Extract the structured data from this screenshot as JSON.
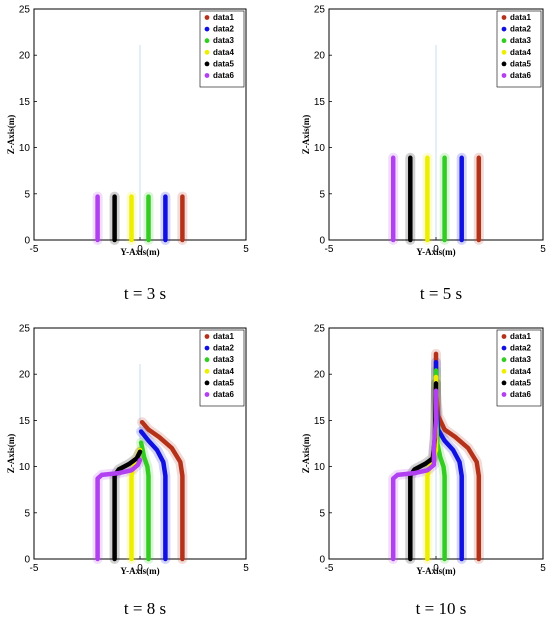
{
  "chart_data": [
    {
      "type": "line",
      "caption": "t = 3 s",
      "xlabel": "Y-Axis(m)",
      "ylabel": "Z-Axis(m)",
      "xlim": [
        -5,
        5
      ],
      "ylim": [
        0,
        25
      ],
      "xticks": [
        "-5",
        "0",
        "5"
      ],
      "yticks": [
        "0",
        "5",
        "10",
        "15",
        "20",
        "25"
      ],
      "legend_position": "top-right",
      "series": [
        {
          "name": "data1",
          "color": "#b5321a",
          "points": [
            [
              2,
              0
            ],
            [
              2,
              4.7
            ]
          ]
        },
        {
          "name": "data2",
          "color": "#1010e0",
          "points": [
            [
              1.2,
              0
            ],
            [
              1.2,
              4.7
            ]
          ]
        },
        {
          "name": "data3",
          "color": "#33cc22",
          "points": [
            [
              0.4,
              0
            ],
            [
              0.4,
              4.7
            ]
          ]
        },
        {
          "name": "data4",
          "color": "#eeee00",
          "points": [
            [
              -0.4,
              0
            ],
            [
              -0.4,
              4.7
            ]
          ]
        },
        {
          "name": "data5",
          "color": "#000000",
          "points": [
            [
              -1.2,
              0
            ],
            [
              -1.2,
              4.7
            ]
          ]
        },
        {
          "name": "data6",
          "color": "#b040f0",
          "points": [
            [
              -2,
              0
            ],
            [
              -2,
              4.7
            ]
          ]
        }
      ]
    },
    {
      "type": "line",
      "caption": "t = 5 s",
      "xlabel": "Y-Axis(m)",
      "ylabel": "Z-Axis(m)",
      "xlim": [
        -5,
        5
      ],
      "ylim": [
        0,
        25
      ],
      "xticks": [
        "-5",
        "0",
        "5"
      ],
      "yticks": [
        "0",
        "5",
        "10",
        "15",
        "20",
        "25"
      ],
      "legend_position": "top-right",
      "series": [
        {
          "name": "data1",
          "color": "#b5321a",
          "points": [
            [
              2,
              0
            ],
            [
              2,
              8.9
            ]
          ]
        },
        {
          "name": "data2",
          "color": "#1010e0",
          "points": [
            [
              1.2,
              0
            ],
            [
              1.2,
              8.9
            ]
          ]
        },
        {
          "name": "data3",
          "color": "#33cc22",
          "points": [
            [
              0.4,
              0
            ],
            [
              0.4,
              8.9
            ]
          ]
        },
        {
          "name": "data4",
          "color": "#eeee00",
          "points": [
            [
              -0.4,
              0
            ],
            [
              -0.4,
              8.9
            ]
          ]
        },
        {
          "name": "data5",
          "color": "#000000",
          "points": [
            [
              -1.2,
              0
            ],
            [
              -1.2,
              8.9
            ]
          ]
        },
        {
          "name": "data6",
          "color": "#b040f0",
          "points": [
            [
              -2,
              0
            ],
            [
              -2,
              8.9
            ]
          ]
        }
      ]
    },
    {
      "type": "line",
      "caption": "t = 8 s",
      "xlabel": "Y-Axis(m)",
      "ylabel": "Z-Axis(m)",
      "xlim": [
        -5,
        5
      ],
      "ylim": [
        0,
        25
      ],
      "xticks": [
        "-5",
        "0",
        "5"
      ],
      "yticks": [
        "0",
        "5",
        "10",
        "15",
        "20",
        "25"
      ],
      "legend_position": "top-right",
      "series": [
        {
          "name": "data1",
          "color": "#b5321a",
          "points": [
            [
              2,
              0
            ],
            [
              2,
              9
            ],
            [
              1.9,
              10.5
            ],
            [
              1.5,
              12
            ],
            [
              0.9,
              13.2
            ],
            [
              0.4,
              14
            ],
            [
              0.1,
              14.8
            ]
          ]
        },
        {
          "name": "data2",
          "color": "#1010e0",
          "points": [
            [
              1.2,
              0
            ],
            [
              1.2,
              9
            ],
            [
              1.1,
              10.5
            ],
            [
              0.8,
              11.8
            ],
            [
              0.4,
              12.8
            ],
            [
              0.05,
              13.8
            ]
          ]
        },
        {
          "name": "data3",
          "color": "#33cc22",
          "points": [
            [
              0.4,
              0
            ],
            [
              0.4,
              9
            ],
            [
              0.35,
              10
            ],
            [
              0.2,
              11
            ],
            [
              0.05,
              12.6
            ]
          ]
        },
        {
          "name": "data4",
          "color": "#eeee00",
          "points": [
            [
              -0.4,
              0
            ],
            [
              -0.4,
              9
            ],
            [
              -0.3,
              10
            ],
            [
              -0.15,
              10.8
            ],
            [
              0,
              11.8
            ]
          ]
        },
        {
          "name": "data5",
          "color": "#000000",
          "points": [
            [
              -1.2,
              0
            ],
            [
              -1.2,
              9
            ],
            [
              -1.0,
              9.7
            ],
            [
              -0.5,
              10.3
            ],
            [
              -0.15,
              10.9
            ],
            [
              0,
              11.6
            ]
          ]
        },
        {
          "name": "data6",
          "color": "#b040f0",
          "points": [
            [
              -2,
              0
            ],
            [
              -2,
              8.7
            ],
            [
              -1.8,
              9.1
            ],
            [
              -1.0,
              9.3
            ],
            [
              -0.4,
              9.6
            ],
            [
              -0.1,
              10.2
            ],
            [
              0,
              10.7
            ]
          ]
        }
      ]
    },
    {
      "type": "line",
      "caption": "t = 10 s",
      "xlabel": "Y-Axis(m)",
      "ylabel": "Z-Axis(m)",
      "xlim": [
        -5,
        5
      ],
      "ylim": [
        0,
        25
      ],
      "xticks": [
        "-5",
        "0",
        "5"
      ],
      "yticks": [
        "0",
        "5",
        "10",
        "15",
        "20",
        "25"
      ],
      "legend_position": "top-right",
      "series": [
        {
          "name": "data1",
          "color": "#b5321a",
          "points": [
            [
              2,
              0
            ],
            [
              2,
              9
            ],
            [
              1.9,
              10.5
            ],
            [
              1.5,
              12
            ],
            [
              0.9,
              13.2
            ],
            [
              0.4,
              14
            ],
            [
              0.1,
              15.5
            ],
            [
              0,
              18
            ],
            [
              0,
              22.2
            ]
          ]
        },
        {
          "name": "data2",
          "color": "#1010e0",
          "points": [
            [
              1.2,
              0
            ],
            [
              1.2,
              9
            ],
            [
              1.1,
              10.5
            ],
            [
              0.8,
              11.8
            ],
            [
              0.4,
              12.8
            ],
            [
              0.1,
              14
            ],
            [
              0,
              17
            ],
            [
              0,
              21.3
            ]
          ]
        },
        {
          "name": "data3",
          "color": "#33cc22",
          "points": [
            [
              0.4,
              0
            ],
            [
              0.4,
              9
            ],
            [
              0.35,
              10
            ],
            [
              0.2,
              11
            ],
            [
              0.05,
              12.6
            ],
            [
              0,
              16
            ],
            [
              0,
              20.4
            ]
          ]
        },
        {
          "name": "data4",
          "color": "#eeee00",
          "points": [
            [
              -0.4,
              0
            ],
            [
              -0.4,
              9
            ],
            [
              -0.3,
              10
            ],
            [
              -0.15,
              10.8
            ],
            [
              0,
              11.8
            ],
            [
              0,
              19.7
            ]
          ]
        },
        {
          "name": "data5",
          "color": "#000000",
          "points": [
            [
              -1.2,
              0
            ],
            [
              -1.2,
              9
            ],
            [
              -1.0,
              9.7
            ],
            [
              -0.5,
              10.3
            ],
            [
              -0.15,
              10.9
            ],
            [
              -0.05,
              13
            ],
            [
              0,
              19
            ]
          ]
        },
        {
          "name": "data6",
          "color": "#b040f0",
          "points": [
            [
              -2,
              0
            ],
            [
              -2,
              8.7
            ],
            [
              -1.8,
              9.1
            ],
            [
              -1.0,
              9.3
            ],
            [
              -0.4,
              9.6
            ],
            [
              -0.1,
              10.2
            ],
            [
              -0.1,
              12
            ],
            [
              0,
              15
            ],
            [
              0,
              18.2
            ]
          ]
        }
      ]
    }
  ]
}
